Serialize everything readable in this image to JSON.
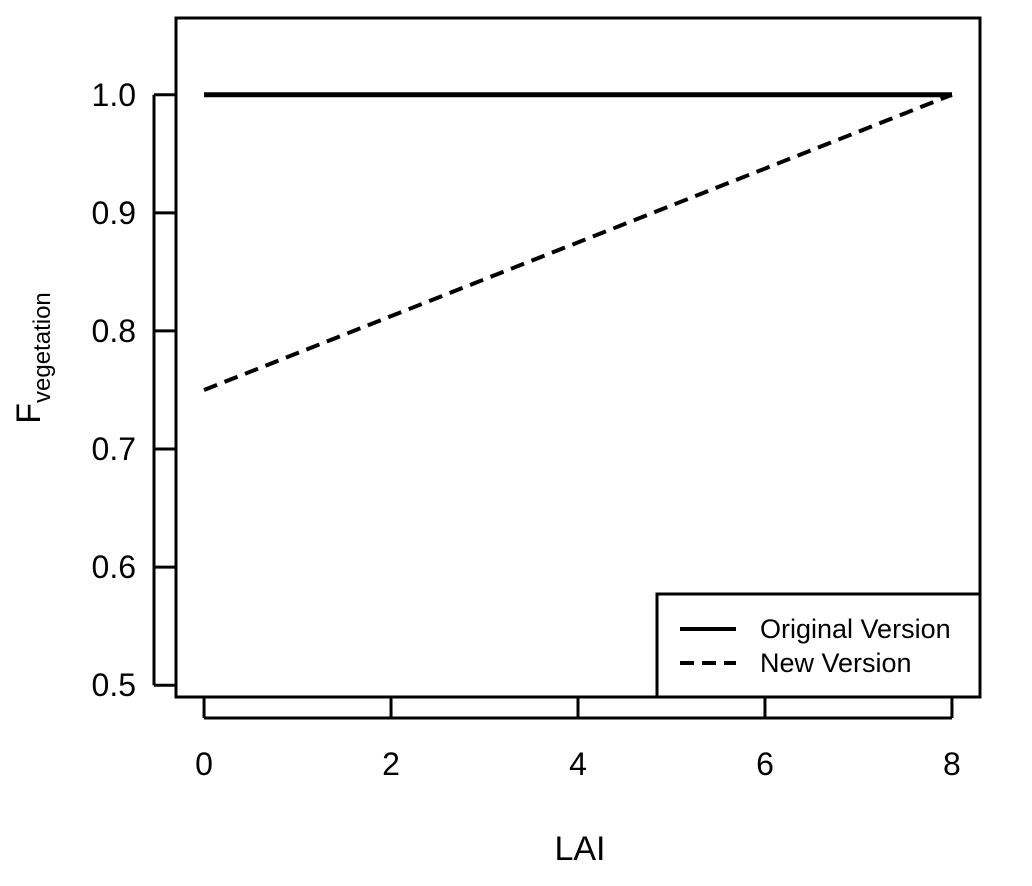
{
  "chart_data": {
    "type": "line",
    "title": "",
    "xlabel": "LAI",
    "ylabel_main": "F",
    "ylabel_sub": "vegetation",
    "xlim": [
      -0.3,
      8.3
    ],
    "ylim": [
      0.49,
      1.065
    ],
    "xticks": [
      0,
      2,
      4,
      6,
      8
    ],
    "yticks": [
      0.5,
      0.6,
      0.7,
      0.8,
      0.9,
      1.0
    ],
    "xtick_labels": [
      "0",
      "2",
      "4",
      "6",
      "8"
    ],
    "ytick_labels": [
      "0.5",
      "0.6",
      "0.7",
      "0.8",
      "0.9",
      "1.0"
    ],
    "grid": false,
    "legend_position": "bottom-right",
    "series": [
      {
        "name": "Original Version",
        "style": "solid",
        "color": "#000000",
        "x": [
          0,
          8
        ],
        "y": [
          1.0,
          1.0
        ]
      },
      {
        "name": "New Version",
        "style": "dashed",
        "color": "#000000",
        "x": [
          0,
          8
        ],
        "y": [
          0.75,
          1.0
        ]
      }
    ]
  }
}
